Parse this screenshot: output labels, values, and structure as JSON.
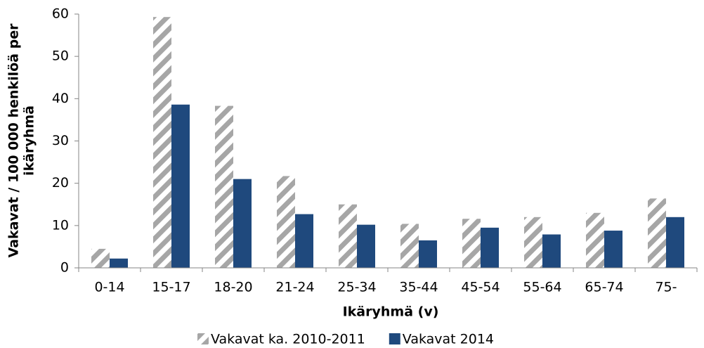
{
  "chart_data": {
    "type": "bar",
    "xlabel": "Ikäryhmä (v)",
    "ylabel": [
      "Vakavat / 100 000 henkilöä per",
      "ikäryhmä"
    ],
    "categories": [
      "0-14",
      "15-17",
      "18-20",
      "21-24",
      "25-34",
      "35-44",
      "45-54",
      "55-64",
      "65-74",
      "75-"
    ],
    "series": [
      {
        "name": "Vakavat ka. 2010-2011",
        "color": "#a6a6a6",
        "pattern": "hatch",
        "values": [
          4.5,
          59.3,
          38.3,
          21.7,
          15.0,
          10.4,
          11.6,
          12.0,
          13.0,
          16.4
        ]
      },
      {
        "name": "Vakavat 2014",
        "color": "#1f497d",
        "values": [
          2.2,
          38.6,
          21.0,
          12.7,
          10.2,
          6.5,
          9.5,
          7.9,
          8.8,
          12.0
        ]
      }
    ],
    "ylim": [
      0,
      60
    ],
    "yticks": [
      0,
      10,
      20,
      30,
      40,
      50,
      60
    ],
    "grid": false,
    "legend": "bottom"
  }
}
